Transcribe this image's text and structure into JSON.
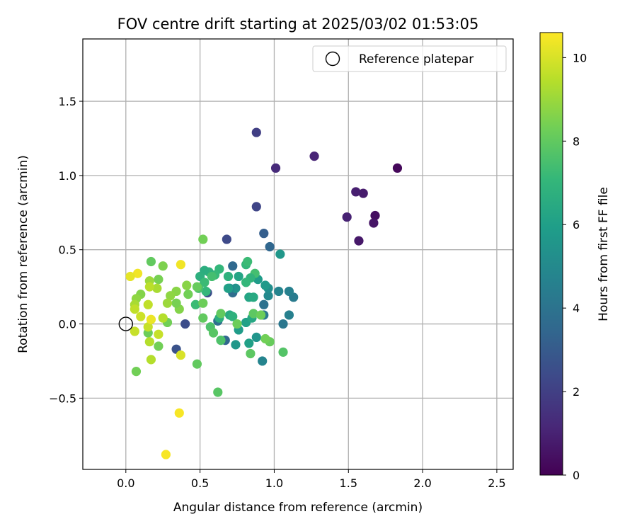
{
  "chart_data": {
    "type": "scatter",
    "title": "FOV centre drift starting at 2025/03/02 01:53:05",
    "xlabel": "Angular distance from reference (arcmin)",
    "ylabel": "Rotation from reference (arcmin)",
    "xlim": [
      -0.29,
      2.61
    ],
    "ylim": [
      -0.98,
      1.92
    ],
    "xticks": [
      0.0,
      0.5,
      1.0,
      1.5,
      2.0,
      2.5
    ],
    "xtick_labels": [
      "0.0",
      "0.5",
      "1.0",
      "1.5",
      "2.0",
      "2.5"
    ],
    "yticks": [
      -0.5,
      0.0,
      0.5,
      1.0,
      1.5
    ],
    "ytick_labels": [
      "−0.5",
      "0.0",
      "0.5",
      "1.0",
      "1.5"
    ],
    "grid": true,
    "legend": {
      "placement": "top-right",
      "label": "Reference platepar"
    },
    "reference_point": {
      "x": 0.0,
      "y": 0.0
    },
    "colorbar": {
      "label": "Hours from first FF file",
      "min": 0,
      "max": 10.6,
      "ticks": [
        0,
        2,
        4,
        6,
        8,
        10
      ],
      "tick_labels": [
        "0",
        "2",
        "4",
        "6",
        "8",
        "10"
      ],
      "colormap": "viridis",
      "colors": [
        "#440154",
        "#482878",
        "#3e4989",
        "#31688e",
        "#26828e",
        "#1f9e89",
        "#35b779",
        "#6ece58",
        "#b5de2b",
        "#fde725"
      ]
    },
    "points": [
      [
        1.83,
        1.05,
        0.2
      ],
      [
        1.68,
        0.73,
        0.4
      ],
      [
        1.67,
        0.68,
        0.6
      ],
      [
        1.57,
        0.56,
        0.7
      ],
      [
        1.6,
        0.88,
        0.8
      ],
      [
        1.55,
        0.89,
        0.9
      ],
      [
        1.49,
        0.72,
        1.0
      ],
      [
        1.27,
        1.13,
        1.1
      ],
      [
        1.01,
        1.05,
        1.3
      ],
      [
        0.88,
        1.29,
        2.0
      ],
      [
        0.88,
        0.79,
        2.2
      ],
      [
        0.68,
        0.57,
        2.4
      ],
      [
        0.55,
        0.21,
        2.6
      ],
      [
        0.4,
        0.0,
        2.5
      ],
      [
        0.34,
        -0.17,
        2.7
      ],
      [
        0.93,
        0.61,
        3.2
      ],
      [
        0.97,
        0.52,
        3.5
      ],
      [
        0.72,
        0.39,
        3.6
      ],
      [
        0.72,
        0.21,
        3.8
      ],
      [
        0.62,
        0.02,
        3.8
      ],
      [
        0.67,
        -0.11,
        3.5
      ],
      [
        0.93,
        0.13,
        4.0
      ],
      [
        0.93,
        0.06,
        4.3
      ],
      [
        1.06,
        0.0,
        4.2
      ],
      [
        1.1,
        0.06,
        4.6
      ],
      [
        1.13,
        0.18,
        4.4
      ],
      [
        1.1,
        0.22,
        4.6
      ],
      [
        1.03,
        0.22,
        4.8
      ],
      [
        0.96,
        0.19,
        5.0
      ],
      [
        0.96,
        0.24,
        5.2
      ],
      [
        1.04,
        0.47,
        5.6
      ],
      [
        0.94,
        0.26,
        5.7
      ],
      [
        0.89,
        0.3,
        5.8
      ],
      [
        0.92,
        -0.25,
        4.8
      ],
      [
        0.88,
        -0.09,
        5.5
      ],
      [
        0.83,
        -0.13,
        6.0
      ],
      [
        0.76,
        -0.04,
        5.8
      ],
      [
        0.76,
        0.32,
        6.2
      ],
      [
        0.74,
        0.24,
        5.4
      ],
      [
        0.7,
        0.24,
        5.0
      ],
      [
        0.74,
        -0.14,
        5.6
      ],
      [
        0.81,
        0.01,
        6.0
      ],
      [
        0.83,
        0.18,
        6.2
      ],
      [
        0.86,
        0.18,
        6.4
      ],
      [
        0.85,
        0.04,
        6.3
      ],
      [
        0.69,
        0.24,
        6.0
      ],
      [
        0.7,
        0.06,
        6.4
      ],
      [
        0.72,
        0.05,
        6.8
      ],
      [
        0.63,
        0.04,
        6.6
      ],
      [
        0.69,
        0.32,
        6.8
      ],
      [
        0.81,
        0.4,
        7.0
      ],
      [
        0.82,
        0.42,
        7.2
      ],
      [
        0.87,
        0.34,
        7.4
      ],
      [
        0.84,
        0.31,
        6.9
      ],
      [
        0.81,
        0.28,
        7.0
      ],
      [
        0.63,
        0.37,
        7.0
      ],
      [
        0.6,
        0.33,
        7.1
      ],
      [
        0.56,
        0.35,
        6.8
      ],
      [
        0.53,
        0.36,
        6.6
      ],
      [
        0.5,
        0.32,
        6.7
      ],
      [
        0.53,
        0.28,
        7.2
      ],
      [
        0.58,
        0.32,
        7.4
      ],
      [
        0.54,
        0.22,
        7.0
      ],
      [
        0.47,
        0.13,
        7.2
      ],
      [
        0.49,
        0.24,
        7.5
      ],
      [
        0.57,
        -0.02,
        7.6
      ],
      [
        0.59,
        -0.06,
        7.8
      ],
      [
        0.64,
        -0.11,
        7.6
      ],
      [
        0.64,
        0.07,
        8.0
      ],
      [
        0.75,
        0.0,
        8.2
      ],
      [
        0.84,
        -0.2,
        7.9
      ],
      [
        0.97,
        -0.12,
        8.1
      ],
      [
        0.94,
        -0.1,
        8.3
      ],
      [
        1.06,
        -0.19,
        7.7
      ],
      [
        0.86,
        0.07,
        7.9
      ],
      [
        0.91,
        0.06,
        8.2
      ],
      [
        0.62,
        -0.46,
        7.8
      ],
      [
        0.48,
        -0.27,
        8.0
      ],
      [
        0.52,
        0.14,
        8.2
      ],
      [
        0.52,
        0.04,
        8.0
      ],
      [
        0.52,
        0.57,
        8.3
      ],
      [
        0.48,
        0.25,
        8.1
      ],
      [
        0.41,
        0.26,
        8.7
      ],
      [
        0.42,
        0.2,
        8.3
      ],
      [
        0.36,
        0.1,
        8.6
      ],
      [
        0.34,
        0.14,
        8.4
      ],
      [
        0.34,
        0.22,
        8.7
      ],
      [
        0.3,
        0.19,
        8.8
      ],
      [
        0.25,
        0.39,
        8.5
      ],
      [
        0.22,
        0.3,
        8.4
      ],
      [
        0.17,
        0.42,
        8.0
      ],
      [
        0.28,
        0.14,
        9.0
      ],
      [
        0.28,
        0.01,
        8.3
      ],
      [
        0.25,
        0.04,
        9.4
      ],
      [
        0.21,
        0.24,
        9.2
      ],
      [
        0.16,
        0.29,
        9.0
      ],
      [
        0.16,
        0.25,
        9.5
      ],
      [
        0.15,
        0.13,
        9.6
      ],
      [
        0.22,
        -0.15,
        8.3
      ],
      [
        0.15,
        -0.06,
        8.2
      ],
      [
        0.16,
        -0.12,
        9.4
      ],
      [
        0.15,
        -0.02,
        9.7
      ],
      [
        0.17,
        -0.24,
        9.4
      ],
      [
        0.22,
        -0.07,
        9.7
      ],
      [
        0.1,
        0.2,
        8.6
      ],
      [
        0.1,
        0.05,
        9.8
      ],
      [
        0.07,
        0.17,
        8.8
      ],
      [
        0.06,
        0.13,
        9.2
      ],
      [
        0.06,
        0.1,
        9.6
      ],
      [
        0.06,
        -0.05,
        9.7
      ],
      [
        0.07,
        -0.32,
        8.3
      ],
      [
        0.08,
        0.34,
        10.4
      ],
      [
        0.03,
        0.32,
        10.2
      ],
      [
        0.17,
        0.03,
        10.3
      ],
      [
        0.37,
        0.4,
        10.4
      ],
      [
        0.37,
        -0.21,
        10.0
      ],
      [
        0.36,
        -0.6,
        10.5
      ],
      [
        0.27,
        -0.88,
        10.5
      ]
    ]
  }
}
